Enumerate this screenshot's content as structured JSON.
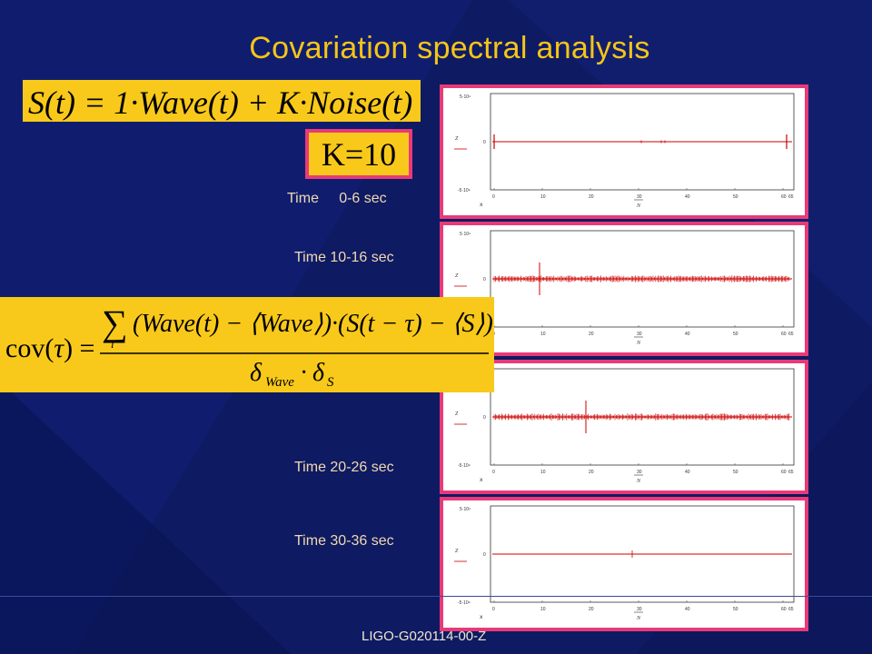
{
  "slide": {
    "title": "Covariation spectral analysis",
    "equation_signal": "S(t) = 1·Wave(t) + K·Noise(t)",
    "k_value": "K=10",
    "covariance_formula": "cov(τ) = Σ_i (Wave(t) − ⟨Wave⟩)·(S(t−τ) − ⟨S⟩) / (δ_Wave · δ_S)",
    "footer": "LIGO-G020114-00-Z"
  },
  "panels": [
    {
      "label_time": "Time",
      "label_range": "0-6 sec",
      "style": "sparse"
    },
    {
      "label": "Time 10-16 sec",
      "style": "noisy"
    },
    {
      "label": "Time 20-26 sec",
      "style": "noisy"
    },
    {
      "label": "Time 30-36 sec",
      "style": "flat"
    }
  ],
  "plot": {
    "x_ticks": [
      "0",
      "10",
      "20",
      "30",
      "40",
      "50",
      "60"
    ],
    "y_tick_top": "5·10⁹",
    "y_tick_bottom": "-5·10⁹",
    "trace_color": "#cc0000"
  }
}
